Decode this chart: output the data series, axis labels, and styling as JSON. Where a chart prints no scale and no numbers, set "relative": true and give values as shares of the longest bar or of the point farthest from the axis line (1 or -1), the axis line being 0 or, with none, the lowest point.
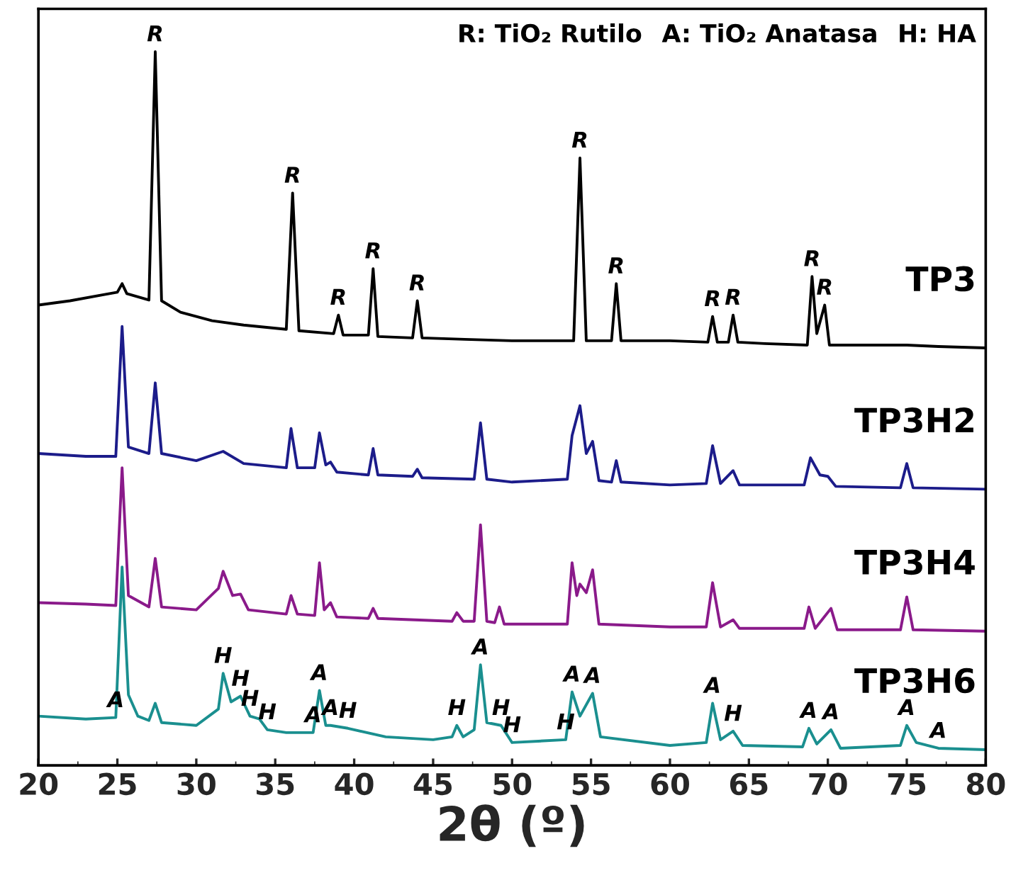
{
  "chart_data": {
    "type": "line",
    "relative": true,
    "xlabel": "2θ (º)",
    "xlim": [
      20,
      80
    ],
    "xticks": [
      20,
      25,
      30,
      35,
      40,
      45,
      50,
      55,
      60,
      65,
      70,
      75,
      80
    ],
    "tick_labels": "x",
    "grid": false,
    "marker": "none",
    "line_style": "solid",
    "series": [
      {
        "name": "TP3",
        "color": "#000000",
        "x": [
          20,
          22,
          24,
          25,
          25.3,
          25.6,
          27.0,
          27.4,
          27.8,
          29,
          31,
          33,
          35.7,
          36.1,
          36.5,
          38.7,
          39.0,
          39.3,
          40.9,
          41.2,
          41.5,
          43.7,
          44.0,
          44.3,
          47,
          50,
          53.9,
          54.3,
          54.7,
          56.3,
          56.6,
          56.9,
          60,
          62.4,
          62.7,
          63.0,
          63.7,
          64.0,
          64.3,
          66,
          68.7,
          69.0,
          69.3,
          69.8,
          70.1,
          72,
          75,
          77,
          80
        ],
        "values": [
          0.645,
          0.651,
          0.659,
          0.663,
          0.675,
          0.661,
          0.652,
          1.0,
          0.651,
          0.635,
          0.623,
          0.617,
          0.611,
          0.802,
          0.609,
          0.605,
          0.631,
          0.603,
          0.603,
          0.696,
          0.601,
          0.599,
          0.651,
          0.599,
          0.597,
          0.595,
          0.595,
          0.851,
          0.595,
          0.595,
          0.675,
          0.595,
          0.595,
          0.593,
          0.629,
          0.593,
          0.593,
          0.631,
          0.593,
          0.591,
          0.589,
          0.685,
          0.605,
          0.645,
          0.589,
          0.589,
          0.589,
          0.587,
          0.585
        ]
      },
      {
        "name": "TP3H2",
        "color": "#1c1c8a",
        "x": [
          20,
          23,
          24.9,
          25.3,
          25.7,
          27.0,
          27.4,
          27.8,
          30,
          31.7,
          33,
          35.7,
          36.0,
          36.4,
          37.5,
          37.8,
          38.2,
          38.5,
          38.9,
          40.9,
          41.2,
          41.5,
          43.7,
          44,
          44.3,
          47.6,
          48.0,
          48.4,
          50,
          53.5,
          53.8,
          54.3,
          54.7,
          55.1,
          55.5,
          56.3,
          56.6,
          56.9,
          60,
          62.3,
          62.7,
          63.2,
          64,
          64.4,
          68.5,
          68.9,
          69.5,
          70,
          70.5,
          74.6,
          75,
          75.4,
          80
        ],
        "values": [
          0.437,
          0.433,
          0.433,
          0.615,
          0.446,
          0.437,
          0.536,
          0.437,
          0.427,
          0.44,
          0.423,
          0.417,
          0.472,
          0.417,
          0.417,
          0.466,
          0.421,
          0.425,
          0.411,
          0.407,
          0.444,
          0.407,
          0.405,
          0.415,
          0.403,
          0.401,
          0.48,
          0.401,
          0.397,
          0.401,
          0.462,
          0.504,
          0.437,
          0.454,
          0.399,
          0.397,
          0.427,
          0.397,
          0.393,
          0.395,
          0.448,
          0.395,
          0.413,
          0.393,
          0.393,
          0.431,
          0.407,
          0.405,
          0.391,
          0.389,
          0.423,
          0.389,
          0.387
        ]
      },
      {
        "name": "TP3H4",
        "color": "#8a1a8a",
        "x": [
          20,
          23,
          24.9,
          25.3,
          25.7,
          27.0,
          27.4,
          27.8,
          30,
          31.4,
          31.7,
          32.3,
          32.8,
          33.3,
          35.7,
          36.0,
          36.4,
          37.5,
          37.8,
          38.1,
          38.5,
          38.9,
          40.9,
          41.2,
          41.5,
          46.2,
          46.5,
          46.9,
          47.6,
          48.0,
          48.4,
          48.9,
          49.2,
          49.5,
          53.5,
          53.8,
          54.1,
          54.3,
          54.7,
          55.1,
          55.5,
          60,
          62.3,
          62.7,
          63.2,
          64,
          64.4,
          68.5,
          68.8,
          69.2,
          70.2,
          70.6,
          74.6,
          75,
          75.4,
          80
        ],
        "values": [
          0.228,
          0.226,
          0.224,
          0.417,
          0.238,
          0.222,
          0.29,
          0.222,
          0.218,
          0.248,
          0.272,
          0.238,
          0.24,
          0.218,
          0.212,
          0.238,
          0.212,
          0.21,
          0.284,
          0.218,
          0.228,
          0.208,
          0.206,
          0.22,
          0.206,
          0.202,
          0.214,
          0.202,
          0.202,
          0.337,
          0.202,
          0.2,
          0.222,
          0.198,
          0.198,
          0.284,
          0.238,
          0.254,
          0.242,
          0.274,
          0.198,
          0.194,
          0.194,
          0.256,
          0.194,
          0.204,
          0.192,
          0.192,
          0.222,
          0.192,
          0.22,
          0.19,
          0.19,
          0.236,
          0.19,
          0.188
        ]
      },
      {
        "name": "TP3H6",
        "color": "#1a8f8f",
        "x": [
          20,
          23,
          24.9,
          25.3,
          25.7,
          26.3,
          27.0,
          27.4,
          27.8,
          30,
          31.4,
          31.7,
          32.2,
          32.8,
          33.4,
          34,
          34.5,
          35.7,
          37.4,
          37.8,
          38.2,
          38.5,
          39.6,
          42,
          45,
          46.2,
          46.5,
          46.9,
          47.6,
          48.0,
          48.4,
          49.3,
          50,
          53.4,
          53.8,
          54.3,
          55.1,
          55.6,
          60,
          62.3,
          62.7,
          63.2,
          64,
          64.6,
          68.4,
          68.8,
          69.3,
          70.2,
          70.8,
          74.6,
          75,
          75.6,
          77,
          80
        ],
        "values": [
          0.069,
          0.065,
          0.067,
          0.278,
          0.099,
          0.069,
          0.063,
          0.087,
          0.06,
          0.056,
          0.079,
          0.129,
          0.089,
          0.097,
          0.069,
          0.065,
          0.05,
          0.046,
          0.046,
          0.105,
          0.056,
          0.056,
          0.052,
          0.04,
          0.036,
          0.04,
          0.056,
          0.04,
          0.05,
          0.141,
          0.06,
          0.056,
          0.032,
          0.036,
          0.103,
          0.069,
          0.101,
          0.04,
          0.028,
          0.032,
          0.087,
          0.036,
          0.048,
          0.028,
          0.026,
          0.052,
          0.03,
          0.05,
          0.024,
          0.028,
          0.056,
          0.032,
          0.024,
          0.022
        ]
      }
    ],
    "annotations": [
      "R: TiO₂ Rutilo",
      "A: TiO₂ Anatasa",
      "H: HA",
      {
        "text": "R",
        "x": 27.4,
        "y": 1.0
      },
      {
        "text": "R",
        "x": 36.1,
        "y": 0.802
      },
      {
        "text": "R",
        "x": 39.0,
        "y": 0.631
      },
      {
        "text": "R",
        "x": 41.2,
        "y": 0.696
      },
      {
        "text": "R",
        "x": 44.0,
        "y": 0.651
      },
      {
        "text": "R",
        "x": 54.3,
        "y": 0.851
      },
      {
        "text": "R",
        "x": 56.6,
        "y": 0.675
      },
      {
        "text": "R",
        "x": 62.7,
        "y": 0.629
      },
      {
        "text": "R",
        "x": 64.0,
        "y": 0.631
      },
      {
        "text": "R",
        "x": 69.0,
        "y": 0.685
      },
      {
        "text": "R",
        "x": 69.8,
        "y": 0.645
      },
      {
        "text": "A",
        "x": 24.9,
        "y": 0.067
      },
      {
        "text": "A",
        "x": 37.8,
        "y": 0.105
      },
      {
        "text": "A",
        "x": 37.4,
        "y": 0.046
      },
      {
        "text": "A",
        "x": 38.5,
        "y": 0.056
      },
      {
        "text": "A",
        "x": 48.0,
        "y": 0.141
      },
      {
        "text": "A",
        "x": 53.8,
        "y": 0.103
      },
      {
        "text": "A",
        "x": 55.1,
        "y": 0.101
      },
      {
        "text": "A",
        "x": 62.7,
        "y": 0.087
      },
      {
        "text": "A",
        "x": 68.8,
        "y": 0.052
      },
      {
        "text": "A",
        "x": 70.2,
        "y": 0.05
      },
      {
        "text": "A",
        "x": 75.0,
        "y": 0.056
      },
      {
        "text": "A",
        "x": 77.0,
        "y": 0.024
      },
      {
        "text": "H",
        "x": 31.7,
        "y": 0.129
      },
      {
        "text": "H",
        "x": 32.8,
        "y": 0.097
      },
      {
        "text": "H",
        "x": 33.4,
        "y": 0.069
      },
      {
        "text": "H",
        "x": 34.5,
        "y": 0.05
      },
      {
        "text": "H",
        "x": 39.6,
        "y": 0.052
      },
      {
        "text": "H",
        "x": 46.5,
        "y": 0.056
      },
      {
        "text": "H",
        "x": 49.3,
        "y": 0.056
      },
      {
        "text": "H",
        "x": 50.0,
        "y": 0.032
      },
      {
        "text": "H",
        "x": 53.4,
        "y": 0.036
      },
      {
        "text": "H",
        "x": 64.0,
        "y": 0.048
      }
    ]
  }
}
